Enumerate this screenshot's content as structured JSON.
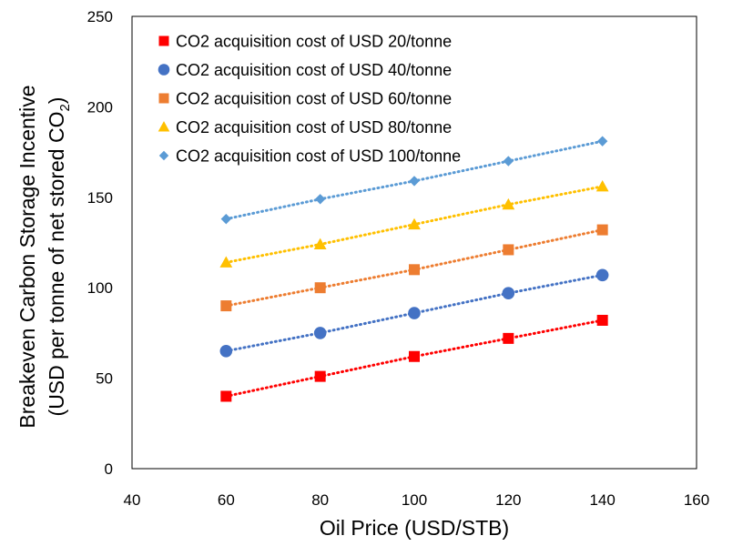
{
  "chart_data": {
    "type": "scatter",
    "title": "",
    "xlabel": "Oil Price (USD/STB)",
    "ylabel_line1": "Breakeven Carbon Storage Incentive",
    "ylabel_line2_prefix": "(USD per tonne of net stored CO",
    "ylabel_line2_sub": "2",
    "ylabel_line2_suffix": ")",
    "xlim": [
      40,
      160
    ],
    "ylim": [
      0,
      250
    ],
    "xticks": [
      40,
      60,
      80,
      100,
      120,
      140,
      160
    ],
    "yticks": [
      0,
      50,
      100,
      150,
      200,
      250
    ],
    "grid": false,
    "legend_position": "top-left",
    "x": [
      60,
      80,
      100,
      120,
      140
    ],
    "series": [
      {
        "name": "CO2 acquisition cost of USD 20/tonne",
        "marker": "square",
        "color": "#ff0000",
        "values": [
          40,
          51,
          62,
          72,
          82
        ]
      },
      {
        "name": "CO2 acquisition cost of USD 40/tonne",
        "marker": "circle",
        "color": "#4472c4",
        "values": [
          65,
          75,
          86,
          97,
          107
        ]
      },
      {
        "name": "CO2 acquisition cost of USD 60/tonne",
        "marker": "square",
        "color": "#ed7d31",
        "values": [
          90,
          100,
          110,
          121,
          132
        ]
      },
      {
        "name": "CO2 acquisition cost of USD 80/tonne",
        "marker": "triangle",
        "color": "#ffc000",
        "values": [
          114,
          124,
          135,
          146,
          156
        ]
      },
      {
        "name": "CO2 acquisition cost of USD 100/tonne",
        "marker": "diamond",
        "color": "#5b9bd5",
        "values": [
          138,
          149,
          159,
          170,
          181
        ]
      }
    ]
  }
}
